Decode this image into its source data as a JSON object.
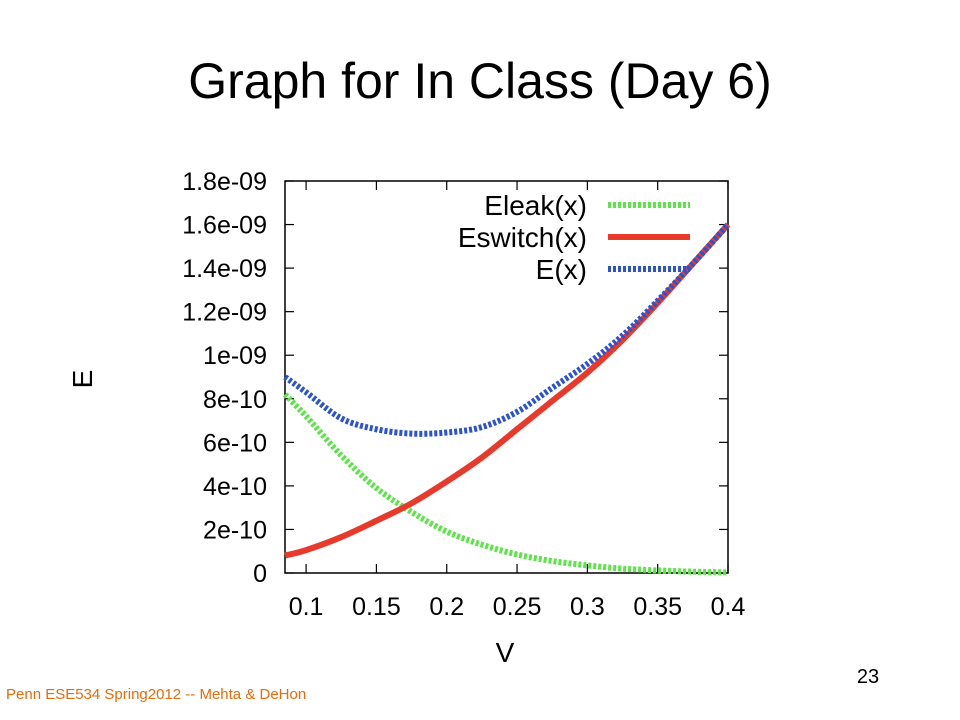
{
  "slide": {
    "title": "Graph for In Class (Day 6)",
    "footer": "Penn ESE534 Spring2012 -- Mehta & DeHon",
    "page_number": "23"
  },
  "chart_data": {
    "type": "line",
    "xlabel": "V",
    "ylabel": "E",
    "xlim": [
      0.085,
      0.4
    ],
    "ylim": [
      0,
      1.8e-09
    ],
    "x_ticks": [
      "0.1",
      "0.15",
      "0.2",
      "0.25",
      "0.3",
      "0.35",
      "0.4"
    ],
    "x_tick_values": [
      0.1,
      0.15,
      0.2,
      0.25,
      0.3,
      0.35,
      0.4
    ],
    "y_ticks": [
      "0",
      "2e-10",
      "4e-10",
      "6e-10",
      "8e-10",
      "1e-09",
      "1.2e-09",
      "1.4e-09",
      "1.6e-09",
      "1.8e-09"
    ],
    "y_tick_values": [
      0,
      2e-10,
      4e-10,
      6e-10,
      8e-10,
      1e-09,
      1.2e-09,
      1.4e-09,
      1.6e-09,
      1.8e-09
    ],
    "grid": false,
    "legend_position": "top-right",
    "x": [
      0.085,
      0.1,
      0.125,
      0.15,
      0.175,
      0.2,
      0.225,
      0.25,
      0.275,
      0.3,
      0.325,
      0.35,
      0.375,
      0.4
    ],
    "series": [
      {
        "name": "Eleak(x)",
        "color": "#5fe34a",
        "style": "dotted",
        "values": [
          8.2e-10,
          7.2e-10,
          5.4e-10,
          3.9e-10,
          2.8e-10,
          1.9e-10,
          1.3e-10,
          8.5e-11,
          5.5e-11,
          3.5e-11,
          2e-11,
          1.2e-11,
          6e-12,
          3e-12
        ]
      },
      {
        "name": "Eswitch(x)",
        "color": "#e83a2b",
        "style": "solid",
        "values": [
          8e-11,
          1.05e-10,
          1.65e-10,
          2.4e-10,
          3.2e-10,
          4.2e-10,
          5.3e-10,
          6.6e-10,
          7.9e-10,
          9.2e-10,
          1.07e-09,
          1.24e-09,
          1.42e-09,
          1.6e-09
        ]
      },
      {
        "name": "E(x)",
        "color": "#2b52d1",
        "style": "dotted",
        "values": [
          9e-10,
          8.3e-10,
          7.1e-10,
          6.6e-10,
          6.4e-10,
          6.45e-10,
          6.7e-10,
          7.4e-10,
          8.5e-10,
          9.6e-10,
          1.09e-09,
          1.25e-09,
          1.42e-09,
          1.6e-09
        ]
      }
    ]
  }
}
